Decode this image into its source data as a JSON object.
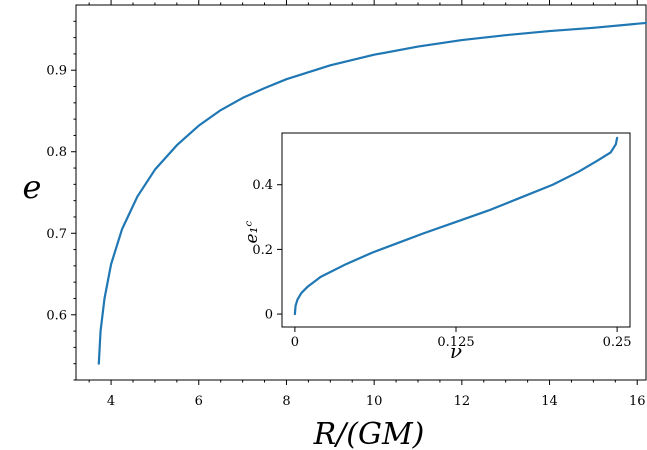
{
  "chart_data": [
    {
      "type": "line",
      "xlabel": "R/(GM)",
      "ylabel": "e",
      "xlim": [
        3.2,
        16.2
      ],
      "ylim": [
        0.52,
        0.98
      ],
      "xticks": [
        4,
        6,
        8,
        10,
        12,
        14,
        16
      ],
      "xtick_labels": [
        "4",
        "6",
        "8",
        "10",
        "12",
        "14",
        "16"
      ],
      "yticks": [
        0.6,
        0.7,
        0.8,
        0.9
      ],
      "ytick_labels": [
        "0.6",
        "0.7",
        "0.8",
        "0.9"
      ],
      "grid": false,
      "series": [
        {
          "color": "#1f77b4",
          "x": [
            3.72,
            3.76,
            3.85,
            4.0,
            4.25,
            4.6,
            5.0,
            5.5,
            6.0,
            6.5,
            7.0,
            7.5,
            8.0,
            9.0,
            10.0,
            11.0,
            12.0,
            13.0,
            14.0,
            15.0,
            16.2
          ],
          "y": [
            0.54,
            0.58,
            0.62,
            0.662,
            0.705,
            0.745,
            0.778,
            0.808,
            0.832,
            0.851,
            0.866,
            0.878,
            0.889,
            0.906,
            0.919,
            0.929,
            0.937,
            0.943,
            0.948,
            0.952,
            0.958
          ]
        }
      ]
    },
    {
      "type": "line",
      "inset": true,
      "xlabel": "ν",
      "ylabel": "e₁ᶜ",
      "xlim": [
        -0.01,
        0.26
      ],
      "ylim": [
        -0.04,
        0.56
      ],
      "xticks": [
        0,
        0.125,
        0.25
      ],
      "xtick_labels": [
        "0",
        "0.125",
        "0.25"
      ],
      "yticks": [
        0,
        0.2,
        0.4
      ],
      "ytick_labels": [
        "0",
        "0.2",
        "0.4"
      ],
      "grid": false,
      "series": [
        {
          "color": "#1f77b4",
          "x": [
            0.0,
            0.0005,
            0.002,
            0.005,
            0.01,
            0.02,
            0.04,
            0.06,
            0.08,
            0.1,
            0.125,
            0.15,
            0.175,
            0.2,
            0.22,
            0.235,
            0.245,
            0.249,
            0.25
          ],
          "y": [
            0.0,
            0.025,
            0.045,
            0.065,
            0.085,
            0.115,
            0.155,
            0.19,
            0.22,
            0.25,
            0.285,
            0.32,
            0.36,
            0.4,
            0.44,
            0.475,
            0.5,
            0.525,
            0.545
          ]
        }
      ]
    }
  ]
}
